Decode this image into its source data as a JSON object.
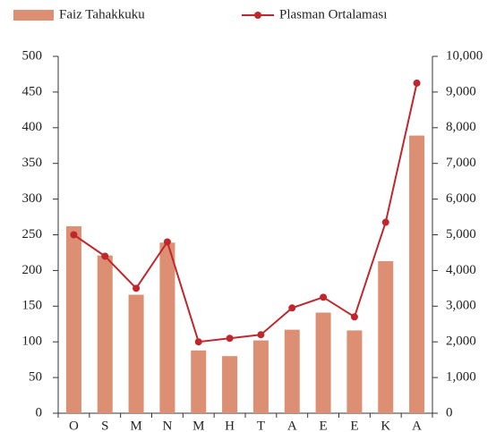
{
  "chart_data": {
    "type": "bar",
    "categories": [
      "O",
      "S",
      "M",
      "N",
      "M",
      "H",
      "T",
      "A",
      "E",
      "E",
      "K",
      "A"
    ],
    "series": [
      {
        "name": "Faiz Tahakkuku",
        "type": "bar",
        "color": "#dc8f73",
        "values": [
          262,
          221,
          166,
          239,
          88,
          80,
          102,
          117,
          141,
          116,
          213,
          389
        ]
      },
      {
        "name": "Plasman Ortalaması",
        "type": "line",
        "axis": "y2",
        "color": "#c0272d",
        "values": [
          5000,
          4400,
          3500,
          4800,
          2000,
          2100,
          2200,
          2950,
          3250,
          2700,
          5350,
          9250
        ]
      }
    ],
    "ylim": [
      0,
      500
    ],
    "yticks": [
      0,
      50,
      100,
      150,
      200,
      250,
      300,
      350,
      400,
      450,
      500
    ],
    "y2lim": [
      0,
      10000
    ],
    "y2ticks": [
      0,
      {
        "value": 1000,
        "label": "1,000"
      },
      {
        "value": 2000,
        "label": "2,000"
      },
      {
        "value": 3000,
        "label": "3,000"
      },
      {
        "value": 4000,
        "label": "4,000"
      },
      {
        "value": 5000,
        "label": "5,000"
      },
      {
        "value": 6000,
        "label": "6,000"
      },
      {
        "value": 7000,
        "label": "7,000"
      },
      {
        "value": 8000,
        "label": "8,000"
      },
      {
        "value": 9000,
        "label": "9,000"
      },
      {
        "value": 10000,
        "label": "10,000"
      }
    ],
    "legend": "top"
  }
}
